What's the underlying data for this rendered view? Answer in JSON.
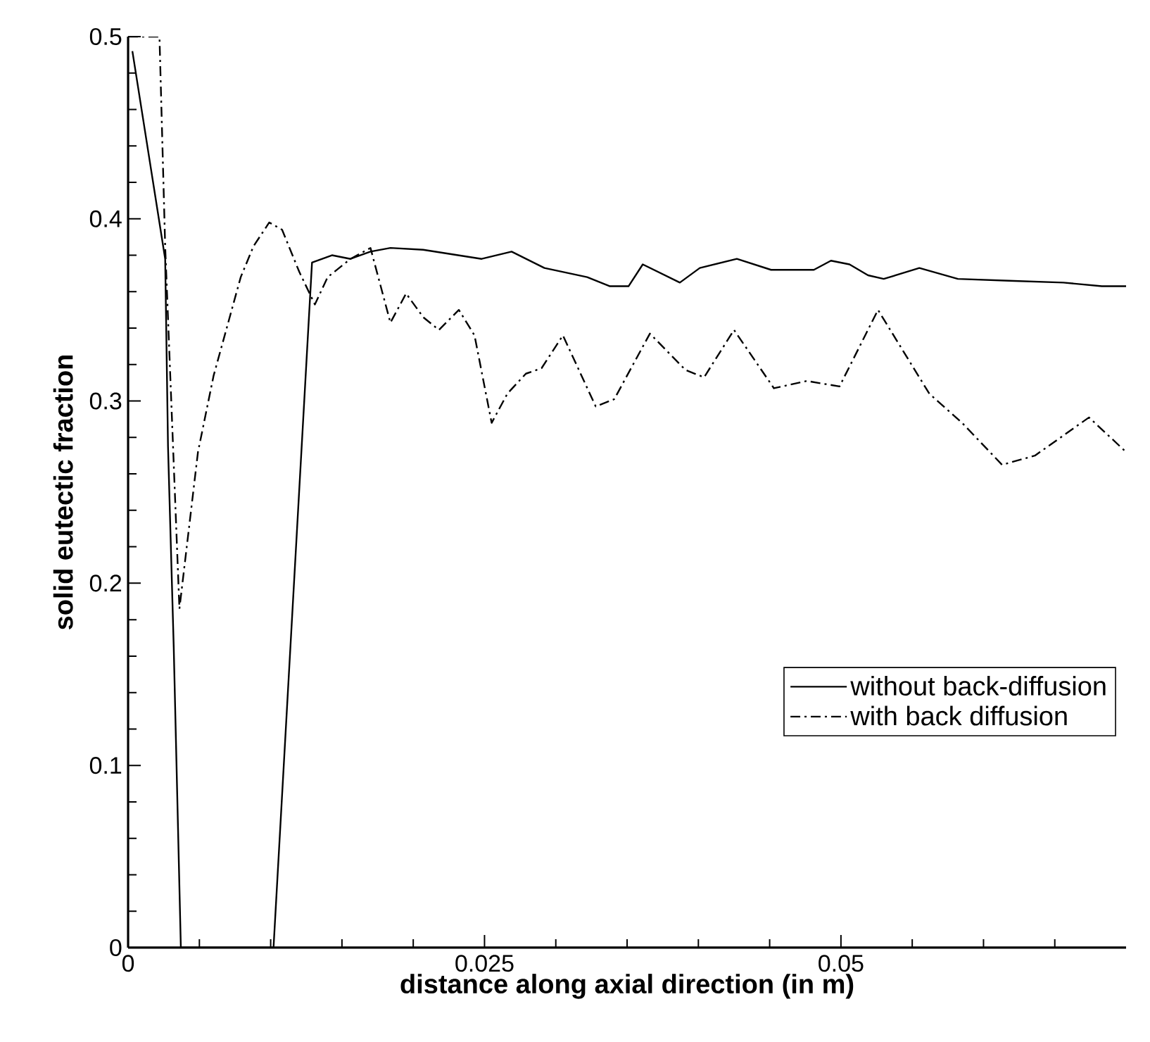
{
  "chart_data": {
    "type": "line",
    "xlabel": "distance along axial direction (in m)",
    "ylabel": "solid eutectic fraction",
    "xlim": [
      0,
      0.07
    ],
    "ylim": [
      0,
      0.5
    ],
    "xticks": [
      0,
      {
        "value": 0.005,
        "label": null
      },
      {
        "value": 0.01,
        "label": null
      },
      {
        "value": 0.015,
        "label": null
      },
      {
        "value": 0.02,
        "label": null
      },
      0.025,
      {
        "value": 0.03,
        "label": null
      },
      {
        "value": 0.035,
        "label": null
      },
      {
        "value": 0.04,
        "label": null
      },
      {
        "value": 0.045,
        "label": null
      },
      0.05,
      {
        "value": 0.055,
        "label": null
      },
      {
        "value": 0.06,
        "label": null
      },
      {
        "value": 0.065,
        "label": null
      }
    ],
    "yticks": [
      0,
      {
        "value": 0.02,
        "label": null
      },
      {
        "value": 0.04,
        "label": null
      },
      {
        "value": 0.06,
        "label": null
      },
      {
        "value": 0.08,
        "label": null
      },
      0.1,
      {
        "value": 0.12,
        "label": null
      },
      {
        "value": 0.14,
        "label": null
      },
      {
        "value": 0.16,
        "label": null
      },
      {
        "value": 0.18,
        "label": null
      },
      0.2,
      {
        "value": 0.22,
        "label": null
      },
      {
        "value": 0.24,
        "label": null
      },
      {
        "value": 0.26,
        "label": null
      },
      {
        "value": 0.28,
        "label": null
      },
      0.3,
      {
        "value": 0.32,
        "label": null
      },
      {
        "value": 0.34,
        "label": null
      },
      {
        "value": 0.36,
        "label": null
      },
      {
        "value": 0.38,
        "label": null
      },
      0.4,
      {
        "value": 0.42,
        "label": null
      },
      {
        "value": 0.44,
        "label": null
      },
      {
        "value": 0.46,
        "label": null
      },
      {
        "value": 0.48,
        "label": null
      },
      0.5
    ],
    "grid": false,
    "legend": "right",
    "marker": "none",
    "series": [
      {
        "name": "without back-diffusion",
        "color": "#000000",
        "line_style": "solid",
        "x": [
          0.0003,
          0.0026,
          0.0028,
          0.0032,
          0.0037,
          0.0102,
          0.0129,
          0.0143,
          0.0156,
          0.017,
          0.0184,
          0.0207,
          0.0248,
          0.0269,
          0.0292,
          0.0322,
          0.0338,
          0.0351,
          0.0361,
          0.0387,
          0.0401,
          0.0427,
          0.0451,
          0.0481,
          0.0493,
          0.0506,
          0.0519,
          0.053,
          0.0555,
          0.0582,
          0.0618,
          0.0656,
          0.0683,
          0.07
        ],
        "values": [
          0.492,
          0.378,
          0.275,
          0.165,
          0,
          0,
          0.376,
          0.38,
          0.378,
          0.382,
          0.384,
          0.383,
          0.378,
          0.382,
          0.373,
          0.368,
          0.363,
          0.363,
          0.375,
          0.365,
          0.373,
          0.378,
          0.372,
          0.372,
          0.377,
          0.375,
          0.369,
          0.367,
          0.373,
          0.367,
          0.366,
          0.365,
          0.363,
          0.363
        ]
      },
      {
        "name": "with back diffusion",
        "color": "#000000",
        "line_style": "dashdot",
        "x": [
          0,
          0.0022,
          0.0026,
          0.0036,
          0.0049,
          0.006,
          0.0079,
          0.0088,
          0.0099,
          0.0108,
          0.012,
          0.0131,
          0.014,
          0.0156,
          0.017,
          0.0184,
          0.0195,
          0.0207,
          0.0218,
          0.0232,
          0.0243,
          0.0255,
          0.0266,
          0.0279,
          0.029,
          0.0305,
          0.0328,
          0.0341,
          0.0366,
          0.0391,
          0.0404,
          0.0425,
          0.0453,
          0.0476,
          0.0499,
          0.0526,
          0.0562,
          0.0585,
          0.0613,
          0.0636,
          0.0674,
          0.07
        ],
        "values": [
          0.5,
          0.5,
          0.385,
          0.186,
          0.272,
          0.314,
          0.368,
          0.385,
          0.398,
          0.394,
          0.371,
          0.353,
          0.368,
          0.378,
          0.384,
          0.343,
          0.359,
          0.346,
          0.339,
          0.35,
          0.336,
          0.288,
          0.304,
          0.315,
          0.318,
          0.336,
          0.297,
          0.301,
          0.337,
          0.317,
          0.313,
          0.339,
          0.307,
          0.311,
          0.308,
          0.35,
          0.304,
          0.288,
          0.265,
          0.27,
          0.291,
          0.272
        ]
      }
    ]
  }
}
